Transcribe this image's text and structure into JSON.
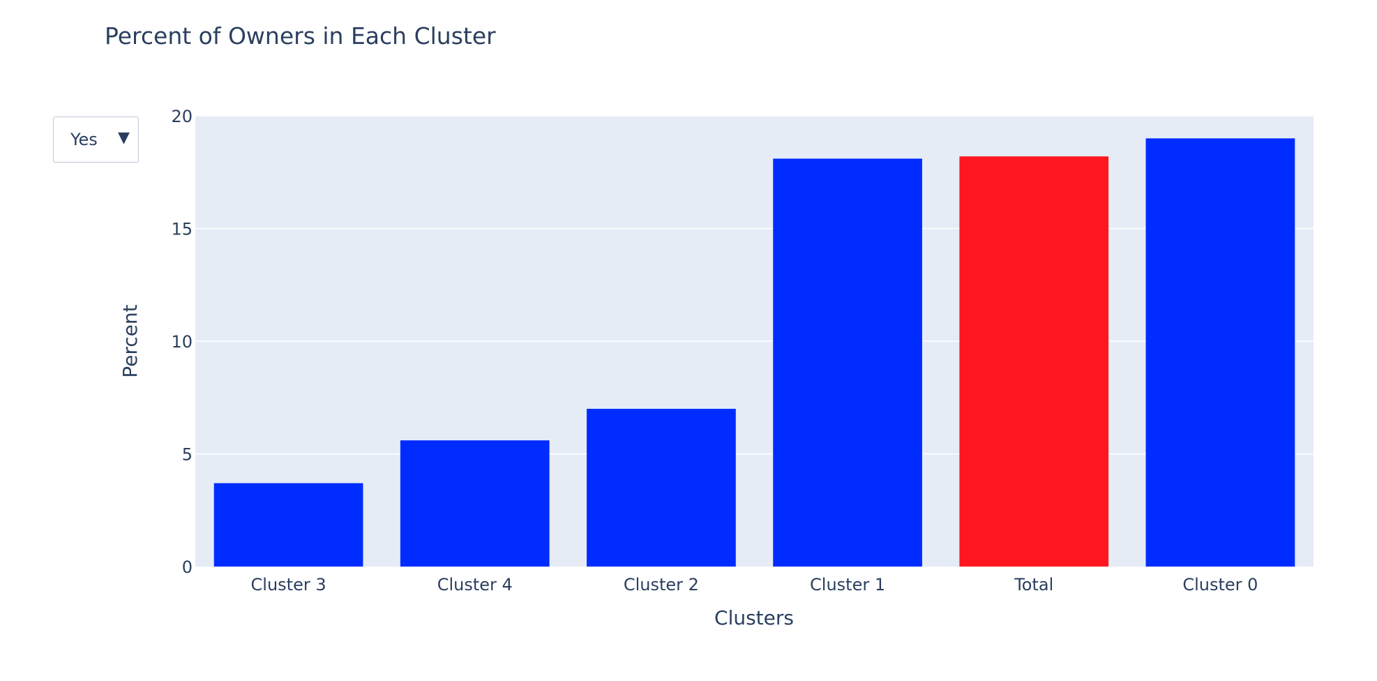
{
  "dropdown": {
    "selected": "Yes"
  },
  "colors": {
    "plot_bg": "#e5ecf6",
    "grid": "#ffffff",
    "text": "#2a3f5f",
    "bar_default": "#002cff",
    "bar_highlight": "#ff1720"
  },
  "chart_data": {
    "type": "bar",
    "title": "Percent of Owners in Each Cluster",
    "xlabel": "Clusters",
    "ylabel": "Percent",
    "ylim": [
      0,
      20
    ],
    "yticks": [
      0,
      5,
      10,
      15,
      20
    ],
    "grid": true,
    "categories": [
      "Cluster 3",
      "Cluster 4",
      "Cluster 2",
      "Cluster 1",
      "Total",
      "Cluster 0"
    ],
    "values": [
      3.7,
      5.6,
      7.0,
      18.1,
      18.2,
      19.0
    ],
    "bar_colors": [
      "#002cff",
      "#002cff",
      "#002cff",
      "#002cff",
      "#ff1720",
      "#002cff"
    ]
  }
}
